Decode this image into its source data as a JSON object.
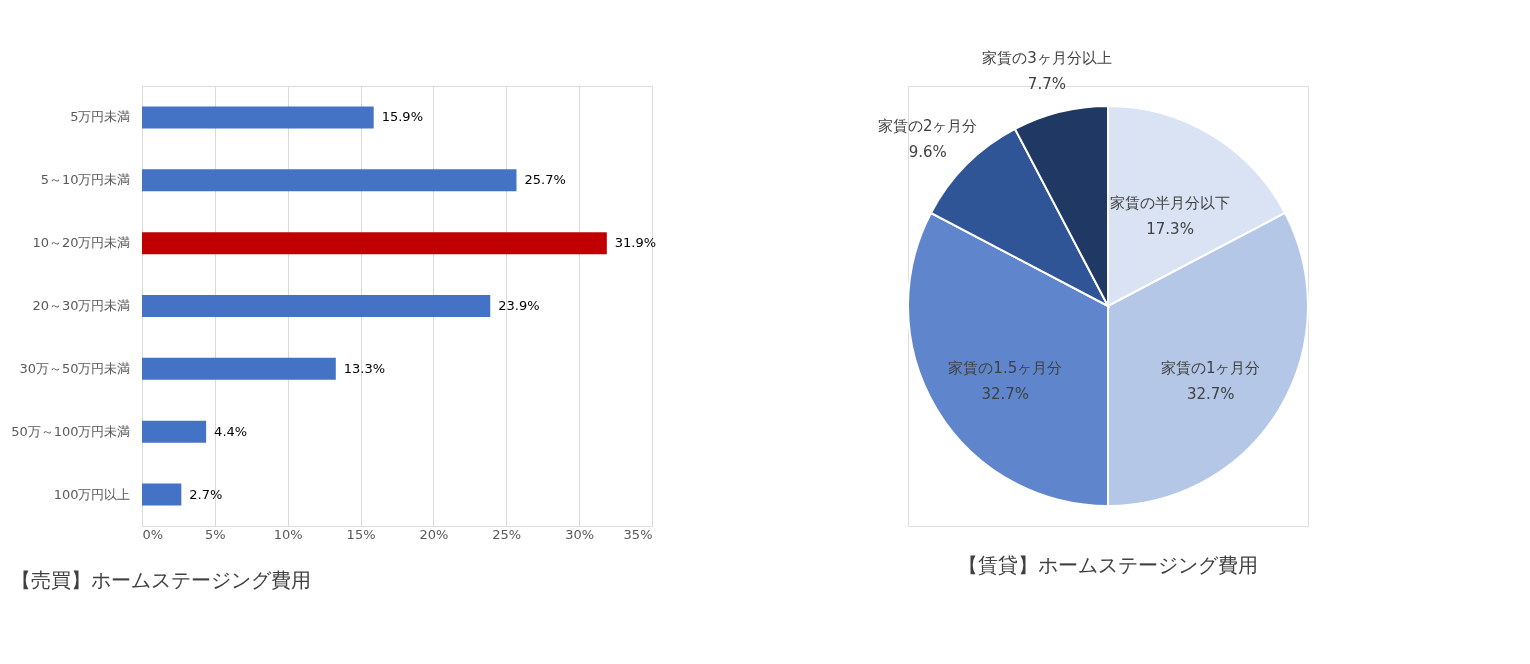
{
  "chart_data": [
    {
      "type": "bar",
      "orientation": "horizontal",
      "title": "【売買】ホームステージング費用",
      "categories": [
        "5万円未満",
        "5～10万円未満",
        "10～20万円未満",
        "20～30万円未満",
        "30万～50万円未満",
        "50万～100万円未満",
        "100万円以上"
      ],
      "values": [
        15.9,
        25.7,
        31.9,
        23.9,
        13.3,
        4.4,
        2.7
      ],
      "colors": [
        "#4472c4",
        "#4472c4",
        "#c00000",
        "#4472c4",
        "#4472c4",
        "#4472c4",
        "#4472c4"
      ],
      "value_labels": [
        "15.9%",
        "25.7%",
        "31.9%",
        "23.9%",
        "13.3%",
        "4.4%",
        "2.7%"
      ],
      "xlim": [
        0,
        35
      ],
      "xticks": [
        {
          "value": 0,
          "label": "0%"
        },
        {
          "value": 5,
          "label": "5%"
        },
        {
          "value": 10,
          "label": "10%"
        },
        {
          "value": 15,
          "label": "15%"
        },
        {
          "value": 20,
          "label": "20%"
        },
        {
          "value": 25,
          "label": "25%"
        },
        {
          "value": 30,
          "label": "30%"
        },
        {
          "value": 35,
          "label": "35%"
        }
      ],
      "grid": "x"
    },
    {
      "type": "pie",
      "title": "【賃貸】ホームステージング費用",
      "categories": [
        "家賃の半月分以下",
        "家賃の1ヶ月分",
        "家賃の1.5ヶ月分",
        "家賃の2ヶ月分",
        "家賃の3ヶ月分以上"
      ],
      "values": [
        17.3,
        32.7,
        32.7,
        9.6,
        7.7
      ],
      "colors": [
        "#dae3f3",
        "#b4c7e7",
        "#5f86cc",
        "#2f5597",
        "#1f3864"
      ],
      "value_labels": [
        "17.3%",
        "32.7%",
        "32.7%",
        "9.6%",
        "7.7%"
      ]
    }
  ]
}
